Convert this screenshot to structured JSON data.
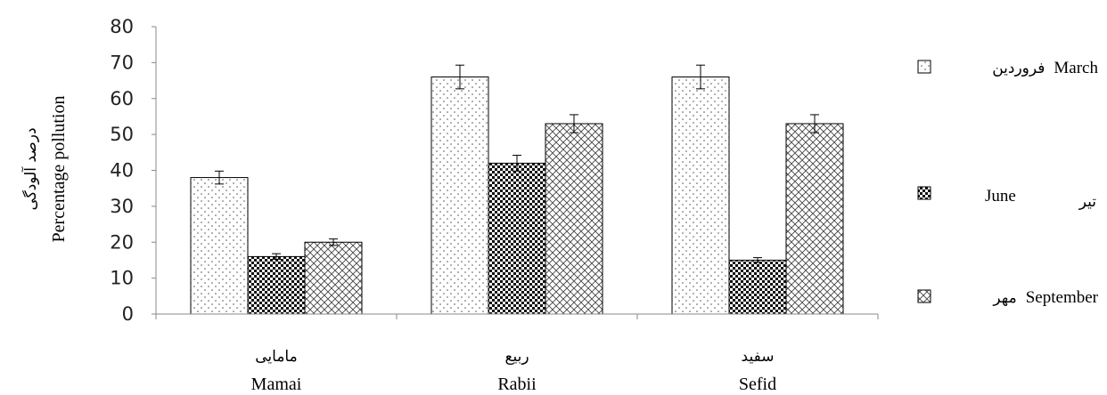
{
  "chart_data": {
    "type": "bar",
    "y_tick_labels": [
      "0",
      "10",
      "20",
      "30",
      "40",
      "50",
      "60",
      "70",
      "80"
    ],
    "ylim": [
      0,
      80
    ],
    "ylabel": {
      "fa": "درصد آلودگی",
      "en": "Percentage pollution"
    },
    "categories": [
      {
        "fa": "مامایی",
        "en": "Mamai"
      },
      {
        "fa": "ربیع",
        "en": "Rabii"
      },
      {
        "fa": "سفید",
        "en": "Sefid"
      }
    ],
    "series": [
      {
        "name_fa": "فروردین",
        "name_en": "March",
        "pattern": "dots",
        "values": [
          38,
          66,
          66
        ],
        "errors": [
          1.8,
          3.3,
          3.3
        ]
      },
      {
        "name_fa": "تیر",
        "name_en": "June",
        "pattern": "checker",
        "values": [
          16,
          42,
          15
        ],
        "errors": [
          0.8,
          2.2,
          0.7
        ]
      },
      {
        "name_fa": "مهر",
        "name_en": "September",
        "pattern": "crosshatch",
        "values": [
          20,
          53,
          53
        ],
        "errors": [
          0.9,
          2.5,
          2.5
        ]
      }
    ],
    "legend_position": "right",
    "grid": false
  }
}
